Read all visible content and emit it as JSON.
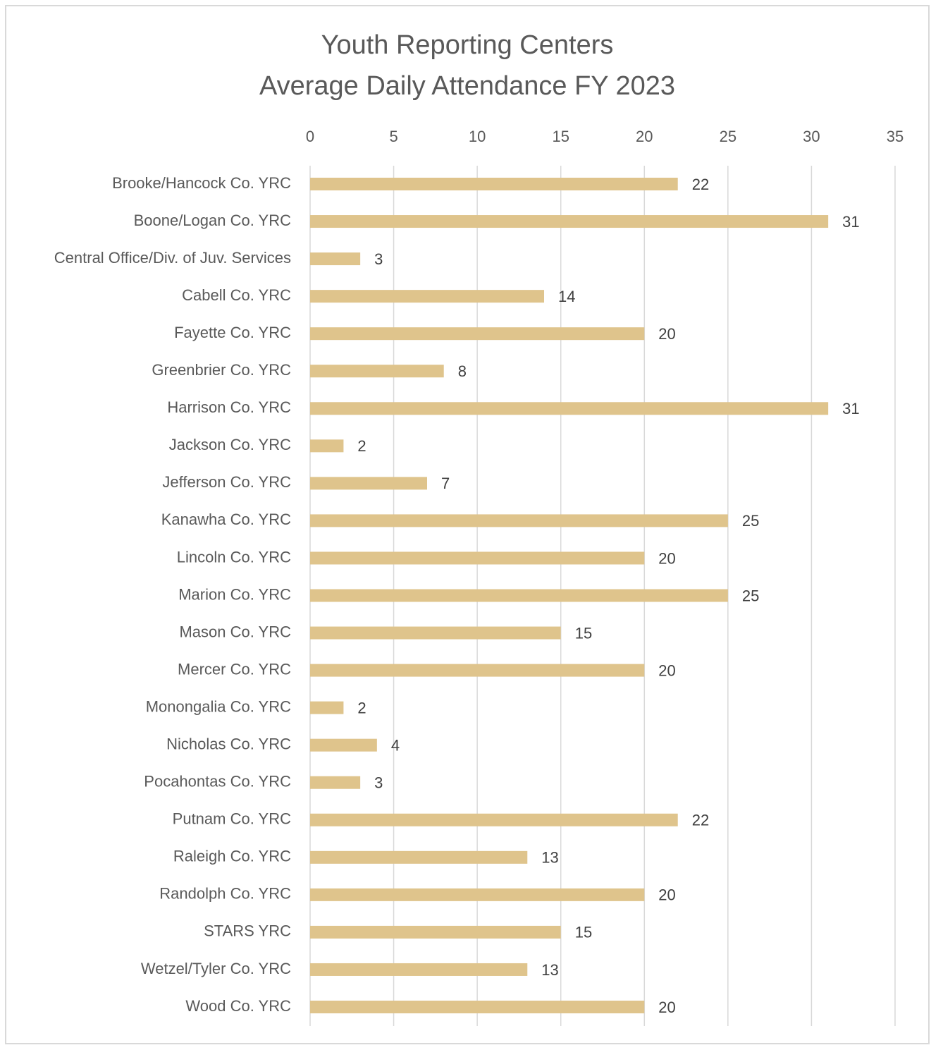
{
  "chart_data": {
    "type": "hbar",
    "title": [
      "Youth Reporting Centers",
      "Average Daily Attendance FY 2023"
    ],
    "categories": [
      "Brooke/Hancock Co. YRC",
      "Boone/Logan Co. YRC",
      "Central Office/Div. of Juv. Services",
      "Cabell Co. YRC",
      "Fayette Co. YRC",
      "Greenbrier Co. YRC",
      "Harrison Co. YRC",
      "Jackson Co. YRC",
      "Jefferson Co. YRC",
      "Kanawha Co. YRC",
      "Lincoln Co. YRC",
      "Marion Co. YRC",
      "Mason Co. YRC",
      "Mercer Co. YRC",
      "Monongalia Co. YRC",
      "Nicholas Co. YRC",
      "Pocahontas Co. YRC",
      "Putnam Co. YRC",
      "Raleigh Co. YRC",
      "Randolph Co. YRC",
      "STARS YRC",
      "Wetzel/Tyler Co. YRC",
      "Wood Co. YRC"
    ],
    "values": [
      22,
      31,
      3,
      14,
      20,
      8,
      31,
      2,
      7,
      25,
      20,
      25,
      15,
      20,
      2,
      4,
      3,
      22,
      13,
      20,
      15,
      13,
      20
    ],
    "color": "#dfc48c",
    "xlim": [
      0,
      35
    ],
    "xticks": [
      0,
      5,
      10,
      15,
      20,
      25,
      30,
      35
    ],
    "grid": true
  }
}
